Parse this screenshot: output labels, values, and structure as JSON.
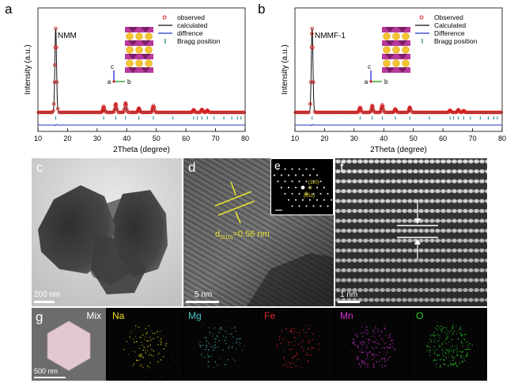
{
  "panels": {
    "a": {
      "letter": "a",
      "sample_label": "NMM",
      "xlabel": "2Theta (degree)",
      "ylabel": "Intensity (a.u.)",
      "legend": [
        "observed",
        "calculated",
        "diffrence",
        "Bragg position"
      ],
      "crystal_axes": [
        "c",
        "b",
        "a"
      ]
    },
    "b": {
      "letter": "b",
      "sample_label": "NMMF-1",
      "xlabel": "2Theta (degree)",
      "ylabel": "Intensity (a.u.)",
      "legend": [
        "Observed",
        "Calculated",
        "Difference",
        "Bragg position"
      ],
      "crystal_axes": [
        "c",
        "b",
        "a"
      ]
    },
    "c": {
      "letter": "c",
      "scale": "200 nm"
    },
    "d": {
      "letter": "d",
      "scale": "5 nm",
      "d_spacing_label": "d",
      "d_spacing_sub": "(010)",
      "d_spacing_value": "=0.56 nm"
    },
    "e": {
      "letter": "e",
      "spot_1": "(110)",
      "spot_2": "(010)"
    },
    "f": {
      "letter": "f",
      "scale": "1 nm"
    },
    "g": {
      "letter": "g",
      "scale": "500 nm",
      "maps": [
        "Mix",
        "Na",
        "Mg",
        "Fe",
        "Mn",
        "O"
      ],
      "map_colors": [
        "#ffffff",
        "#f2e21b",
        "#4fc6c9",
        "#e0272d",
        "#d22fd4",
        "#2fd12f"
      ]
    }
  },
  "chart_data": [
    {
      "type": "line",
      "panel": "a",
      "xlabel": "2Theta (degree)",
      "ylabel": "Intensity (a.u.)",
      "xlim": [
        10,
        80
      ],
      "xticks": [
        10,
        20,
        30,
        40,
        50,
        60,
        70,
        80
      ],
      "peaks": [
        {
          "x": 16.0,
          "h": 1.0
        },
        {
          "x": 32.2,
          "h": 0.07
        },
        {
          "x": 36.3,
          "h": 0.1
        },
        {
          "x": 39.6,
          "h": 0.11
        },
        {
          "x": 44.1,
          "h": 0.05
        },
        {
          "x": 49.0,
          "h": 0.08
        },
        {
          "x": 62.6,
          "h": 0.03
        },
        {
          "x": 65.4,
          "h": 0.035
        },
        {
          "x": 67.2,
          "h": 0.025
        }
      ],
      "bragg_positions": [
        16.0,
        32.2,
        36.3,
        39.6,
        44.1,
        49.0,
        55.6,
        62.6,
        63.8,
        65.4,
        67.2,
        69.5,
        72.8,
        75.5,
        77.4,
        78.6
      ],
      "series": [
        {
          "name": "observed",
          "color": "#d62020"
        },
        {
          "name": "calculated",
          "color": "#111111"
        },
        {
          "name": "diffrence",
          "color": "#2233cc"
        },
        {
          "name": "Bragg position",
          "color": "#127f7f"
        }
      ]
    },
    {
      "type": "line",
      "panel": "b",
      "xlabel": "2Theta (degree)",
      "ylabel": "Intensity (a.u.)",
      "xlim": [
        10,
        80
      ],
      "xticks": [
        10,
        20,
        30,
        40,
        50,
        60,
        70,
        80
      ],
      "peaks": [
        {
          "x": 15.8,
          "h": 1.0
        },
        {
          "x": 32.0,
          "h": 0.06
        },
        {
          "x": 36.1,
          "h": 0.08
        },
        {
          "x": 39.5,
          "h": 0.09
        },
        {
          "x": 43.9,
          "h": 0.04
        },
        {
          "x": 48.8,
          "h": 0.06
        },
        {
          "x": 62.4,
          "h": 0.025
        },
        {
          "x": 65.2,
          "h": 0.03
        },
        {
          "x": 67.0,
          "h": 0.02
        }
      ],
      "bragg_positions": [
        15.8,
        32.0,
        36.1,
        39.5,
        43.9,
        48.8,
        55.4,
        62.4,
        63.6,
        65.2,
        67.0,
        69.3,
        72.6,
        75.3,
        77.2,
        78.4
      ],
      "series": [
        {
          "name": "Observed",
          "color": "#d62020"
        },
        {
          "name": "Calculated",
          "color": "#111111"
        },
        {
          "name": "Difference",
          "color": "#2233cc"
        },
        {
          "name": "Bragg position",
          "color": "#127f7f"
        }
      ]
    }
  ]
}
